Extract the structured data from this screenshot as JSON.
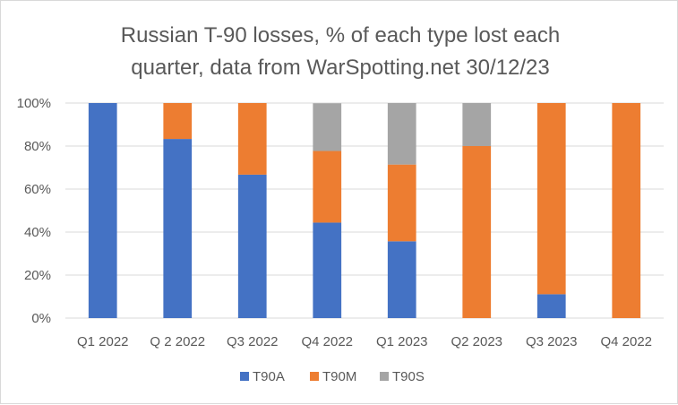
{
  "chart_data": {
    "type": "bar",
    "stacked": true,
    "title_lines": [
      "Russian T-90 losses, % of each type lost each",
      "quarter, data from WarSpotting.net 30/12/23"
    ],
    "xlabel": "",
    "ylabel": "",
    "ylim": [
      0,
      100
    ],
    "yticks": [
      "0%",
      "20%",
      "40%",
      "60%",
      "80%",
      "100%"
    ],
    "ytick_values": [
      0,
      20,
      40,
      60,
      80,
      100
    ],
    "grid": true,
    "legend_position": "bottom",
    "categories": [
      "Q1 2022",
      "Q 2 2022",
      "Q3 2022",
      "Q4 2022",
      "Q1 2023",
      "Q2 2023",
      "Q3 2023",
      "Q4 2022"
    ],
    "series": [
      {
        "name": "T90A",
        "color": "#4472c4",
        "values": [
          100,
          83.3,
          66.7,
          44.4,
          35.7,
          0,
          11.1,
          0
        ]
      },
      {
        "name": "T90M",
        "color": "#ed7d31",
        "values": [
          0,
          16.7,
          33.3,
          33.3,
          35.7,
          80,
          88.9,
          100
        ]
      },
      {
        "name": "T90S",
        "color": "#a5a5a5",
        "values": [
          0,
          0,
          0,
          22.2,
          28.6,
          20,
          0,
          0
        ]
      }
    ]
  }
}
